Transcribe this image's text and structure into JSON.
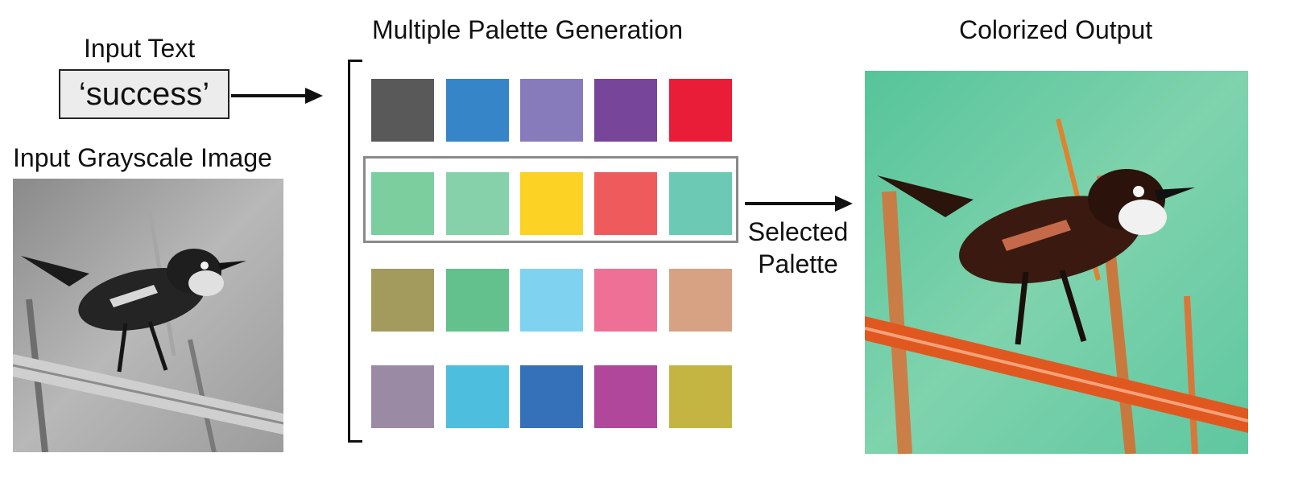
{
  "input_text_label": "Input Text",
  "input_text_value": "‘success’",
  "input_image_label": "Input Grayscale Image",
  "palette_title": "Multiple Palette Generation",
  "selected_label_line1": "Selected",
  "selected_label_line2": "Palette",
  "output_label": "Colorized Output",
  "palettes": [
    [
      "#595959",
      "#3585c8",
      "#887bbb",
      "#774599",
      "#ea1d39"
    ],
    [
      "#7cce9e",
      "#86d1aa",
      "#fcd225",
      "#ef5b5c",
      "#6bc9b4"
    ],
    [
      "#a39a5d",
      "#62c18c",
      "#7fd3f0",
      "#ef7097",
      "#d6a283"
    ],
    [
      "#9b8aa3",
      "#4ebedf",
      "#3571b8",
      "#b1479b",
      "#c4b542"
    ]
  ],
  "selected_palette_index": 1
}
